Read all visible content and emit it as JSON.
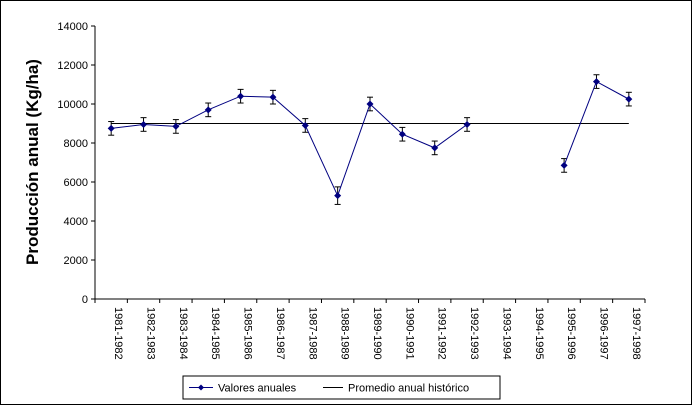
{
  "chart_data": {
    "type": "line",
    "title": "",
    "xlabel": "",
    "ylabel": "Producción anual (Kg/ha)",
    "ylim": [
      0,
      14000
    ],
    "yticks": [
      0,
      2000,
      4000,
      6000,
      8000,
      10000,
      12000,
      14000
    ],
    "grid": false,
    "legend_position": "bottom",
    "categories": [
      "1981-1982",
      "1982-1983",
      "1983-1984",
      "1984-1985",
      "1985-1986",
      "1986-1987",
      "1987-1988",
      "1988-1989",
      "1989-1990",
      "1990-1991",
      "1991-1992",
      "1992-1993",
      "1993-1994",
      "1994-1995",
      "1995-1996",
      "1996-1997",
      "1997-1998"
    ],
    "series": [
      {
        "name": "Valores anuales",
        "color": "#000080",
        "marker": "diamond",
        "values": [
          8750,
          8950,
          8850,
          9700,
          10400,
          10350,
          8900,
          5300,
          10000,
          8450,
          7750,
          8950,
          null,
          null,
          6850,
          11150,
          10250
        ],
        "error": [
          350,
          350,
          350,
          350,
          350,
          350,
          350,
          450,
          350,
          350,
          350,
          350,
          null,
          null,
          350,
          350,
          350
        ]
      },
      {
        "name": "Promedio anual histórico",
        "color": "#000000",
        "style": "line",
        "value": 9000
      }
    ]
  }
}
